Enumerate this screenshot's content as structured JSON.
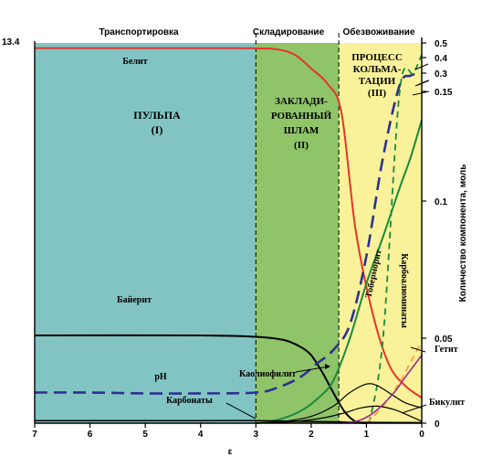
{
  "chart_data": {
    "type": "line",
    "x_range": [
      7,
      0
    ],
    "x_ticks": [
      "7",
      "6",
      "5",
      "4",
      "3",
      "2",
      "1",
      "0"
    ],
    "y_right_label": "Количество компонента, моль",
    "y_right_ticks": [
      "0.5",
      "0.4",
      "0.3",
      "0.15",
      "0.1",
      "0.05",
      "0"
    ],
    "y_left_tick": "13.4",
    "stage_headers": [
      "Транспортировка",
      "Складирование",
      "Обезвоживание"
    ],
    "zones": [
      {
        "lines": [
          "ПУЛЬПА",
          "(I)"
        ],
        "x_from": 7,
        "x_to": 3,
        "color": "#82c4c3"
      },
      {
        "lines": [
          "ЗАКЛАДИ-",
          "РОВАННЫЙ",
          "ШЛАМ",
          "(II)"
        ],
        "x_from": 3,
        "x_to": 1.5,
        "color": "#8fc469"
      },
      {
        "lines": [
          "ПРОЦЕСС",
          "КОЛЬМА-",
          "ТАЦИИ",
          "(III)"
        ],
        "x_from": 1.5,
        "x_to": 0,
        "color": "#f9f29a"
      }
    ],
    "series": [
      {
        "name": "Белит",
        "color": "#e8342a",
        "style": "solid",
        "points": [
          [
            7,
            0.465
          ],
          [
            4,
            0.465
          ],
          [
            3,
            0.464
          ],
          [
            2.6,
            0.455
          ],
          [
            2.3,
            0.42
          ],
          [
            2.0,
            0.33
          ],
          [
            1.7,
            0.21
          ],
          [
            1.45,
            0.14
          ],
          [
            1.2,
            0.09
          ],
          [
            0.9,
            0.06
          ],
          [
            0.6,
            0.035
          ],
          [
            0.3,
            0.022
          ],
          [
            0,
            0.015
          ]
        ]
      },
      {
        "name": "Байерит",
        "color": "#000000",
        "style": "solid",
        "points": [
          [
            7,
            0.051
          ],
          [
            4,
            0.051
          ],
          [
            3,
            0.0505
          ],
          [
            2.5,
            0.049
          ],
          [
            2.2,
            0.045
          ],
          [
            2.0,
            0.04
          ],
          [
            1.8,
            0.03
          ],
          [
            1.6,
            0.018
          ],
          [
            1.4,
            0.007
          ],
          [
            1.2,
            0.001
          ],
          [
            1.0,
            0
          ]
        ]
      },
      {
        "name": "pH",
        "color": "#2e3192",
        "style": "dashed",
        "points": [
          [
            7,
            0.018
          ],
          [
            6,
            0.018
          ],
          [
            5,
            0.0175
          ],
          [
            4,
            0.0175
          ],
          [
            3,
            0.018
          ],
          [
            2.6,
            0.021
          ],
          [
            2.2,
            0.027
          ],
          [
            1.9,
            0.035
          ],
          [
            1.6,
            0.043
          ],
          [
            1.3,
            0.055
          ],
          [
            1.0,
            0.08
          ],
          [
            0.7,
            0.12
          ],
          [
            0.4,
            0.2
          ],
          [
            0.2,
            0.28
          ],
          [
            0,
            0.3
          ]
        ]
      },
      {
        "name": "Тоберморит",
        "color": "#1a8a3c",
        "style": "solid",
        "points": [
          [
            3,
            0
          ],
          [
            2.6,
            0.002
          ],
          [
            2.2,
            0.007
          ],
          [
            1.9,
            0.014
          ],
          [
            1.6,
            0.025
          ],
          [
            1.3,
            0.05
          ],
          [
            1.0,
            0.07
          ],
          [
            0.7,
            0.087
          ],
          [
            0.4,
            0.106
          ],
          [
            0.2,
            0.12
          ],
          [
            0,
            0.137
          ]
        ]
      },
      {
        "name": "Карбоалюминаты",
        "color": "#1a8a3c",
        "style": "dashed",
        "points": [
          [
            0.95,
            0
          ],
          [
            0.7,
            0.05
          ],
          [
            0.4,
            0.15
          ],
          [
            0.15,
            0.3
          ],
          [
            0,
            0.42
          ]
        ]
      },
      {
        "name": "Гетит",
        "color": "#f7a23b",
        "style": "dashed",
        "points": [
          [
            1.0,
            0
          ],
          [
            0.7,
            0.01
          ],
          [
            0.4,
            0.024
          ],
          [
            0.2,
            0.036
          ],
          [
            0,
            0.048
          ]
        ]
      },
      {
        "name": "Каолиофилит",
        "color": "#000000",
        "style": "solid",
        "points": [
          [
            3,
            0
          ],
          [
            2.5,
            0.001
          ],
          [
            2.0,
            0.004
          ],
          [
            1.6,
            0.01
          ],
          [
            1.3,
            0.018
          ],
          [
            1.0,
            0.023
          ],
          [
            0.8,
            0.022
          ],
          [
            0.55,
            0.017
          ],
          [
            0.3,
            0.012
          ],
          [
            0,
            0.009
          ]
        ]
      },
      {
        "name": "Бикулит",
        "color": "#000000",
        "style": "solid",
        "points": [
          [
            3,
            0
          ],
          [
            2.3,
            0.001
          ],
          [
            1.8,
            0.003
          ],
          [
            1.4,
            0.006
          ],
          [
            1.1,
            0.009
          ],
          [
            0.8,
            0.01
          ],
          [
            0.5,
            0.008
          ],
          [
            0.2,
            0.004
          ],
          [
            0,
            0.001
          ]
        ]
      },
      {
        "name": "Карбонаты",
        "color": "#000000",
        "style": "solid",
        "points": [
          [
            7,
            0.0015
          ],
          [
            4,
            0.0015
          ],
          [
            3,
            0.0015
          ],
          [
            2.0,
            0.001
          ],
          [
            1.5,
            0.0008
          ],
          [
            1.0,
            0.0005
          ],
          [
            0,
            0.0003
          ]
        ]
      },
      {
        "name": "",
        "color": "#a02a8e",
        "style": "solid",
        "points": [
          [
            1.5,
            0
          ],
          [
            1.2,
            0.001
          ],
          [
            1.0,
            0.0035
          ],
          [
            0.8,
            0.008
          ],
          [
            0.5,
            0.018
          ],
          [
            0.3,
            0.027
          ],
          [
            0,
            0.04
          ]
        ]
      }
    ],
    "labels": [
      "Белит",
      "Байерит",
      "pH",
      "Тоберморит",
      "Карбоалюминаты",
      "Гетит",
      "Каолиофилит",
      "Бикулит",
      "Карбонаты"
    ],
    "bottom_stub": "ε"
  }
}
